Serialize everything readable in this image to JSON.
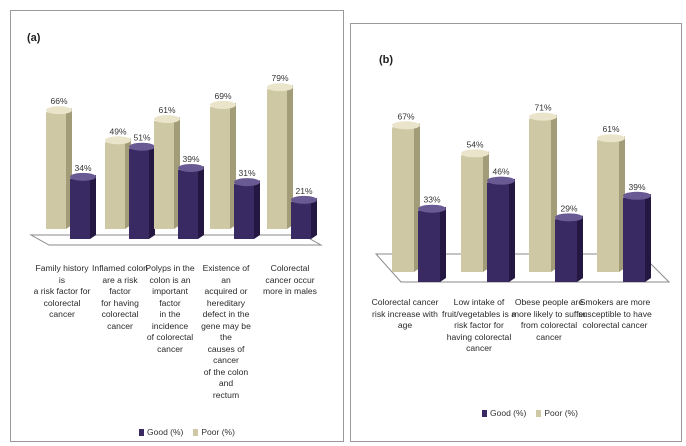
{
  "colors": {
    "good": "#3a2a63",
    "good_side": "#241842",
    "good_top": "#6a5a93",
    "poor": "#cfc8a4",
    "poor_side": "#a39c78",
    "poor_top": "#eae5ca",
    "floor": "#ffffff",
    "floor_stroke": "#8a8a8a"
  },
  "legend": {
    "good": "Good (%)",
    "poor": "Poor  (%)"
  },
  "chart_data": [
    {
      "type": "bar",
      "panel": "(a)",
      "categories": [
        "Family history is a risk factor for colorectal cancer",
        "Inflamed colon are a risk factor for having colorectal cancer",
        "Polyps in the colon is an important factor in the incidence of colorectal cancer",
        "Existence of an acquired or hereditary defect in the gene may be the causes of cancer of the colon and rectum",
        "Colorectal cancer occur more in males"
      ],
      "category_lines": [
        [
          "Family history is",
          "a risk factor for",
          "colorectal",
          "cancer"
        ],
        [
          "Inflamed colon",
          "are a risk factor",
          "for having",
          "colorectal",
          "cancer"
        ],
        [
          "Polyps in the",
          "colon is an",
          "important factor",
          "in the incidence",
          "of colorectal",
          "cancer"
        ],
        [
          "Existence of an",
          "acquired or",
          "hereditary",
          "defect in the",
          "gene may be the",
          "causes of cancer",
          "of the colon and",
          "rectum"
        ],
        [
          "Colorectal",
          "cancer occur",
          "more in males"
        ]
      ],
      "series": [
        {
          "name": "Poor  (%)",
          "values": [
            66,
            49,
            61,
            69,
            79
          ],
          "labels": [
            "66%",
            "49%",
            "61%",
            "69%",
            "79%"
          ]
        },
        {
          "name": "Good (%)",
          "values": [
            34,
            51,
            39,
            31,
            21
          ],
          "labels": [
            "34%",
            "51%",
            "39%",
            "31%",
            "21%"
          ]
        }
      ],
      "ylim": [
        0,
        100
      ],
      "legend_position": "bottom"
    },
    {
      "type": "bar",
      "panel": "(b)",
      "categories": [
        "Colorectal cancer risk increase with age",
        "Low intake of fruit/vegetables is a risk factor for having colorectal cancer",
        "Obese people are more likely to suffer from colorectal cancer",
        "Smokers are more susceptible to have colorectal cancer"
      ],
      "category_lines": [
        [
          "Colorectal cancer",
          "risk increase with",
          "age"
        ],
        [
          "Low intake of",
          "fruit/vegetables is a",
          "risk factor for",
          "having colorectal",
          "cancer"
        ],
        [
          "Obese people are",
          "more likely to suffer",
          "from colorectal",
          "cancer"
        ],
        [
          "Smokers are more",
          "susceptible to have",
          "colorectal cancer"
        ]
      ],
      "series": [
        {
          "name": "Poor  (%)",
          "values": [
            67,
            54,
            71,
            61
          ],
          "labels": [
            "67%",
            "54%",
            "71%",
            "61%"
          ]
        },
        {
          "name": "Good (%)",
          "values": [
            33,
            46,
            29,
            39
          ],
          "labels": [
            "33%",
            "46%",
            "29%",
            "39%"
          ]
        }
      ],
      "ylim": [
        0,
        100
      ],
      "legend_position": "bottom"
    }
  ]
}
